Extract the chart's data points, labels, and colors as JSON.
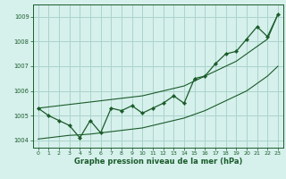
{
  "xlabel": "Graphe pression niveau de la mer (hPa)",
  "bg_color": "#d6f0ec",
  "grid_color": "#aad4cc",
  "line_color": "#1a5c2a",
  "xlim": [
    -0.5,
    23.5
  ],
  "ylim": [
    1003.7,
    1009.5
  ],
  "yticks": [
    1004,
    1005,
    1006,
    1007,
    1008,
    1009
  ],
  "xticks": [
    0,
    1,
    2,
    3,
    4,
    5,
    6,
    7,
    8,
    9,
    10,
    11,
    12,
    13,
    14,
    15,
    16,
    17,
    18,
    19,
    20,
    21,
    22,
    23
  ],
  "hours": [
    0,
    1,
    2,
    3,
    4,
    5,
    6,
    7,
    8,
    9,
    10,
    11,
    12,
    13,
    14,
    15,
    16,
    17,
    18,
    19,
    20,
    21,
    22,
    23
  ],
  "pressure": [
    1005.3,
    1005.0,
    1004.8,
    1004.6,
    1004.1,
    1004.8,
    1004.3,
    1005.3,
    1005.2,
    1005.4,
    1005.1,
    1005.3,
    1005.5,
    1005.8,
    1005.5,
    1006.5,
    1006.6,
    1007.1,
    1007.5,
    1007.6,
    1008.1,
    1008.6,
    1008.2,
    1009.1
  ],
  "trend_low": [
    1004.05,
    1004.1,
    1004.15,
    1004.2,
    1004.22,
    1004.25,
    1004.3,
    1004.35,
    1004.4,
    1004.45,
    1004.5,
    1004.6,
    1004.7,
    1004.8,
    1004.9,
    1005.05,
    1005.2,
    1005.4,
    1005.6,
    1005.8,
    1006.0,
    1006.3,
    1006.6,
    1007.0
  ],
  "trend_high": [
    1005.3,
    1005.35,
    1005.4,
    1005.45,
    1005.5,
    1005.55,
    1005.6,
    1005.65,
    1005.7,
    1005.75,
    1005.8,
    1005.9,
    1006.0,
    1006.1,
    1006.2,
    1006.4,
    1006.6,
    1006.8,
    1007.0,
    1007.2,
    1007.5,
    1007.8,
    1008.1,
    1009.1
  ]
}
